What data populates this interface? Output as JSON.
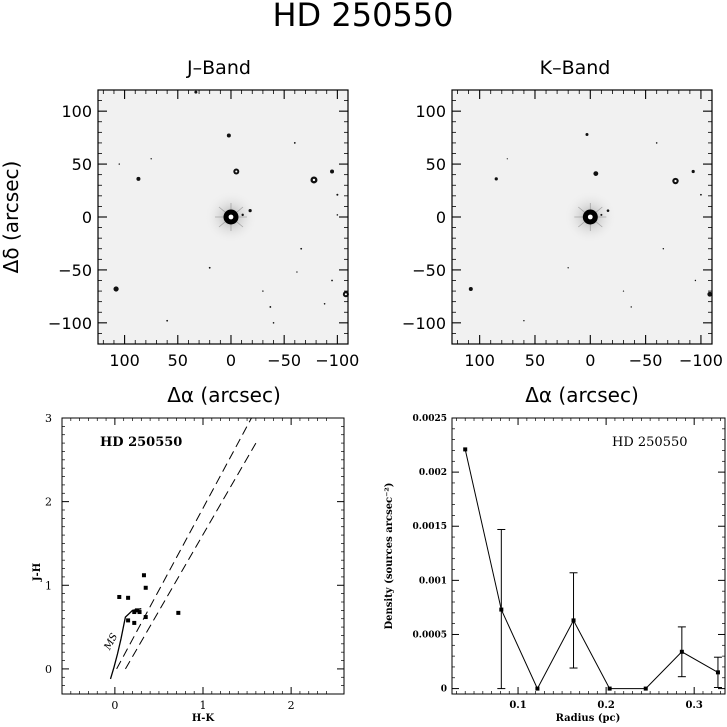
{
  "page_title": "HD 250550",
  "chart_data": [
    {
      "type": "scatter",
      "panel": "image",
      "title": "J–Band",
      "xlabel": "Δα (arcsec)",
      "ylabel": "Δδ (arcsec)",
      "xlim": [
        125,
        -110
      ],
      "ylim": [
        -120,
        120
      ],
      "xticks": [
        100,
        50,
        0,
        -50,
        -100
      ],
      "yticks": [
        100,
        50,
        0,
        -50,
        -100
      ],
      "xtick_labels": [
        "100",
        "50",
        "0",
        "−50",
        "−100"
      ],
      "ytick_labels": [
        "100",
        "50",
        "0",
        "−50",
        "−100"
      ],
      "central_source": [
        0,
        0
      ],
      "stars": [
        [
          2,
          77,
          2.0
        ],
        [
          -5,
          43,
          3.0
        ],
        [
          -78,
          35,
          3.5
        ],
        [
          -95,
          43,
          2.0
        ],
        [
          87,
          36,
          2.0
        ],
        [
          -18,
          6,
          1.6
        ],
        [
          -11,
          2,
          1.2
        ],
        [
          108,
          -68,
          2.6
        ],
        [
          -108,
          -73,
          3.0
        ],
        [
          33,
          118,
          1.5
        ],
        [
          -100,
          21,
          1.0
        ],
        [
          -60,
          70,
          0.9
        ],
        [
          20,
          -48,
          0.9
        ],
        [
          60,
          -98,
          0.9
        ],
        [
          -37,
          -85,
          0.9
        ],
        [
          -66,
          -30,
          0.9
        ],
        [
          -95,
          -60,
          0.9
        ],
        [
          -40,
          -100,
          0.8
        ],
        [
          -88,
          -82,
          0.8
        ],
        [
          -100,
          2,
          0.8
        ],
        [
          75,
          55,
          0.7
        ],
        [
          105,
          50,
          0.7
        ],
        [
          -30,
          -70,
          0.7
        ],
        [
          -62,
          -52,
          0.7
        ]
      ]
    },
    {
      "type": "scatter",
      "panel": "image",
      "title": "K–Band",
      "xlabel": "Δα (arcsec)",
      "xlim": [
        125,
        -110
      ],
      "ylim": [
        -120,
        120
      ],
      "xticks": [
        100,
        50,
        0,
        -50,
        -100
      ],
      "yticks": [
        100,
        50,
        0,
        -50,
        -100
      ],
      "xtick_labels": [
        "100",
        "50",
        "0",
        "−50",
        "−100"
      ],
      "ytick_labels": [
        "100",
        "50",
        "0",
        "−50",
        "−100"
      ],
      "central_source": [
        0,
        0
      ],
      "stars": [
        [
          3,
          78,
          1.5
        ],
        [
          -5,
          41,
          2.4
        ],
        [
          -77,
          34,
          3.2
        ],
        [
          -93,
          43,
          1.6
        ],
        [
          85,
          36,
          1.6
        ],
        [
          -16,
          6,
          1.3
        ],
        [
          -10,
          2,
          1.0
        ],
        [
          108,
          -68,
          2.0
        ],
        [
          -108,
          -73,
          2.4
        ],
        [
          -100,
          21,
          0.9
        ],
        [
          -60,
          70,
          0.8
        ],
        [
          20,
          -48,
          0.7
        ],
        [
          60,
          -98,
          0.7
        ],
        [
          -37,
          -85,
          0.7
        ],
        [
          -66,
          -30,
          0.7
        ],
        [
          -95,
          -60,
          0.7
        ],
        [
          75,
          55,
          0.6
        ],
        [
          -30,
          -70,
          0.6
        ]
      ]
    },
    {
      "type": "scatter",
      "panel": "color-color",
      "label": "HD 250550",
      "annotation": "MS",
      "xlabel": "H-K",
      "ylabel": "J-H",
      "xlim": [
        -0.6,
        2.6
      ],
      "ylim": [
        -0.3,
        3.0
      ],
      "xticks": [
        0,
        1,
        2
      ],
      "yticks": [
        0,
        1,
        2,
        3
      ],
      "xtick_labels": [
        "0",
        "1",
        "2"
      ],
      "ytick_labels": [
        "0",
        "1",
        "2",
        "3"
      ],
      "points": [
        [
          0.05,
          0.86
        ],
        [
          0.15,
          0.85
        ],
        [
          0.33,
          1.12
        ],
        [
          0.35,
          0.97
        ],
        [
          0.25,
          0.7
        ],
        [
          0.22,
          0.68
        ],
        [
          0.28,
          0.68
        ],
        [
          0.15,
          0.58
        ],
        [
          0.22,
          0.55
        ],
        [
          0.35,
          0.62
        ],
        [
          0.72,
          0.67
        ]
      ],
      "main_sequence": [
        [
          -0.05,
          -0.12
        ],
        [
          -0.01,
          0.02
        ],
        [
          0.03,
          0.18
        ],
        [
          0.07,
          0.36
        ],
        [
          0.1,
          0.52
        ],
        [
          0.12,
          0.62
        ],
        [
          0.2,
          0.7
        ],
        [
          0.3,
          0.72
        ]
      ],
      "reddening_lines": [
        [
          [
            0.02,
            0.0
          ],
          [
            1.55,
            3.0
          ]
        ],
        [
          [
            0.12,
            0.0
          ],
          [
            1.6,
            2.7
          ]
        ]
      ]
    },
    {
      "type": "line",
      "panel": "density",
      "label": "HD 250550",
      "xlabel": "Radius (pc)",
      "ylabel": "Density (sources arcsec⁻²)",
      "xlim": [
        0.025,
        0.335
      ],
      "ylim": [
        -5e-05,
        0.0025
      ],
      "xticks": [
        0.1,
        0.2,
        0.3
      ],
      "yticks": [
        0,
        0.0005,
        0.001,
        0.0015,
        0.002,
        0.0025
      ],
      "xtick_labels": [
        "0.1",
        "0.2",
        "0.3"
      ],
      "ytick_labels": [
        "0",
        "0.0005",
        "0.001",
        "0.0015",
        "0.002",
        "0.0025"
      ],
      "x": [
        0.04,
        0.081,
        0.122,
        0.163,
        0.204,
        0.245,
        0.286,
        0.327
      ],
      "y": [
        0.00221,
        0.00073,
        0.0,
        0.00063,
        0.0,
        0.0,
        0.00034,
        0.00015
      ],
      "yerr": [
        0.0,
        0.00074,
        0.0,
        0.00044,
        0.0,
        0.0,
        0.00023,
        0.00014
      ]
    }
  ]
}
